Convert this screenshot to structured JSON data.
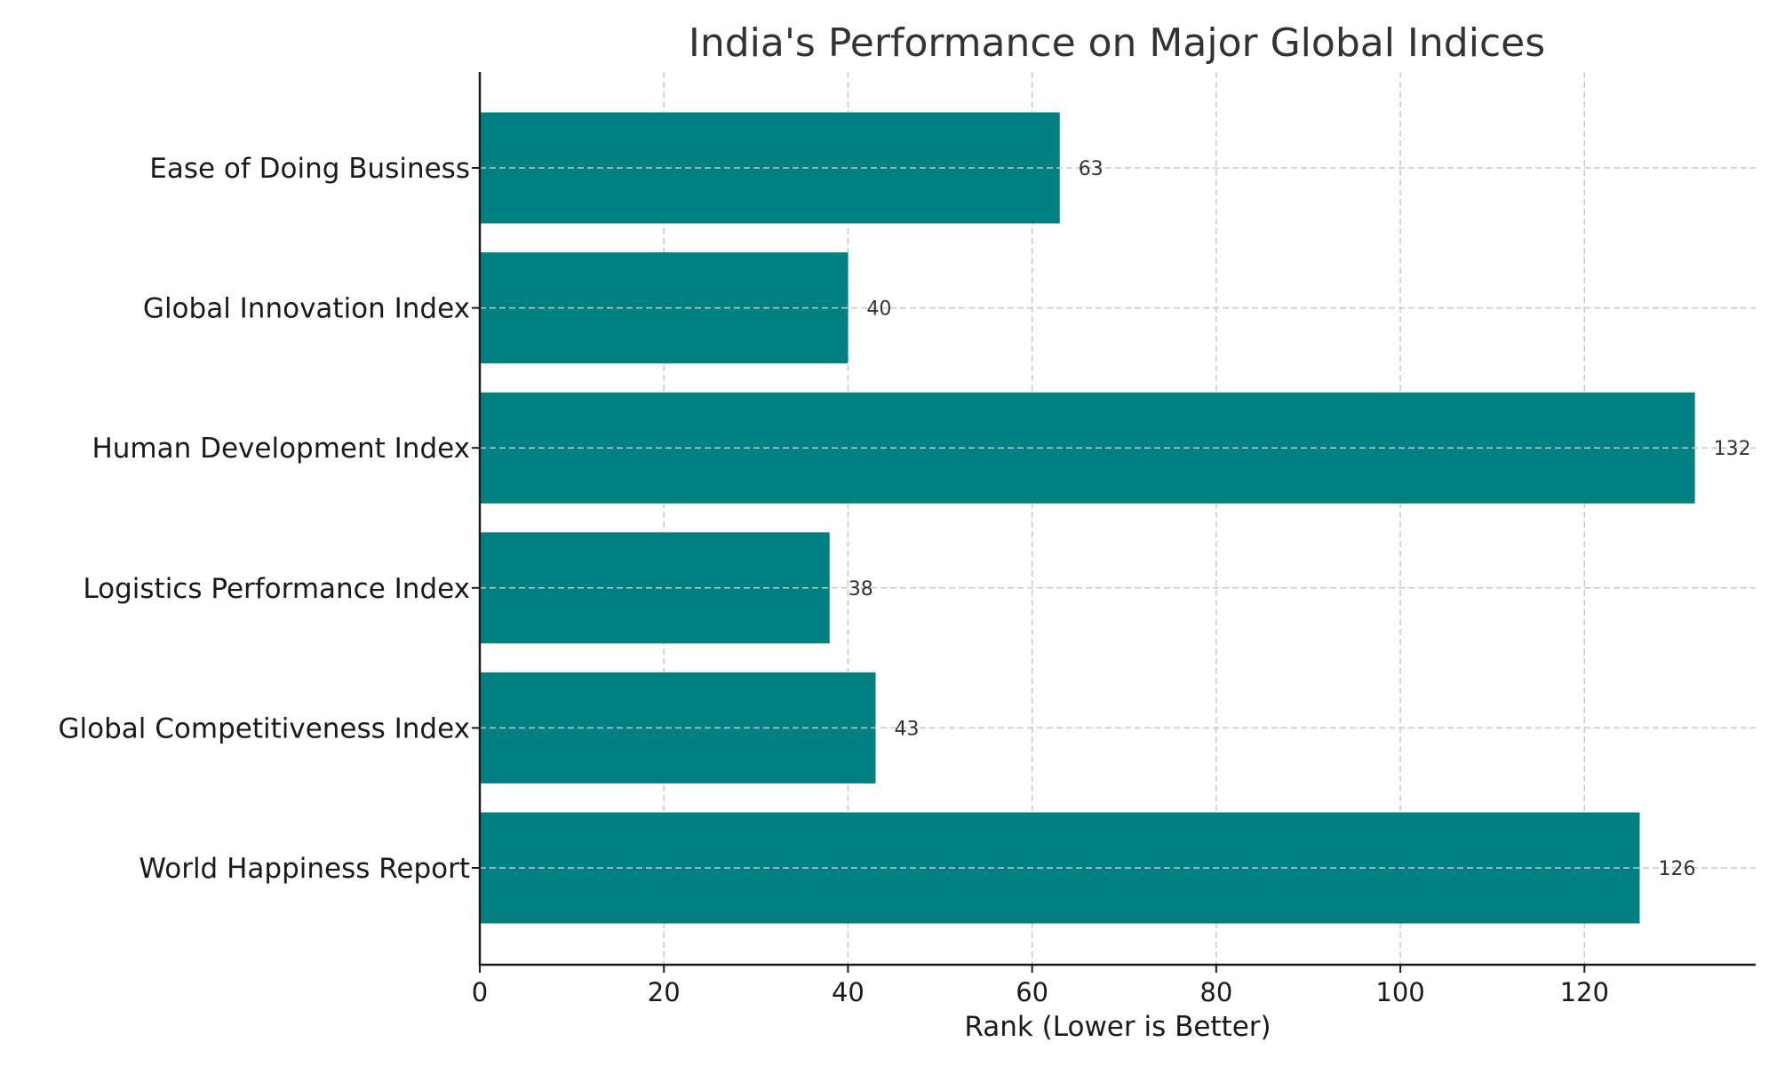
{
  "chart_data": {
    "type": "bar",
    "orientation": "horizontal",
    "title": "India's Performance on Major Global Indices",
    "xlabel": "Rank (Lower is Better)",
    "ylabel": "",
    "categories": [
      "Ease of Doing Business",
      "Global Innovation Index",
      "Human Development Index",
      "Logistics Performance Index",
      "Global Competitiveness Index",
      "World Happiness Report"
    ],
    "values": [
      63,
      40,
      132,
      38,
      43,
      126
    ],
    "value_labels": [
      "63",
      "40",
      "132",
      "38",
      "43",
      "126"
    ],
    "xticks": [
      0,
      20,
      40,
      60,
      80,
      100,
      120
    ],
    "xtick_labels": [
      "0",
      "20",
      "40",
      "60",
      "80",
      "100",
      "120"
    ],
    "xlim": [
      0,
      138.6
    ],
    "grid": true,
    "bar_color": "#008080"
  }
}
